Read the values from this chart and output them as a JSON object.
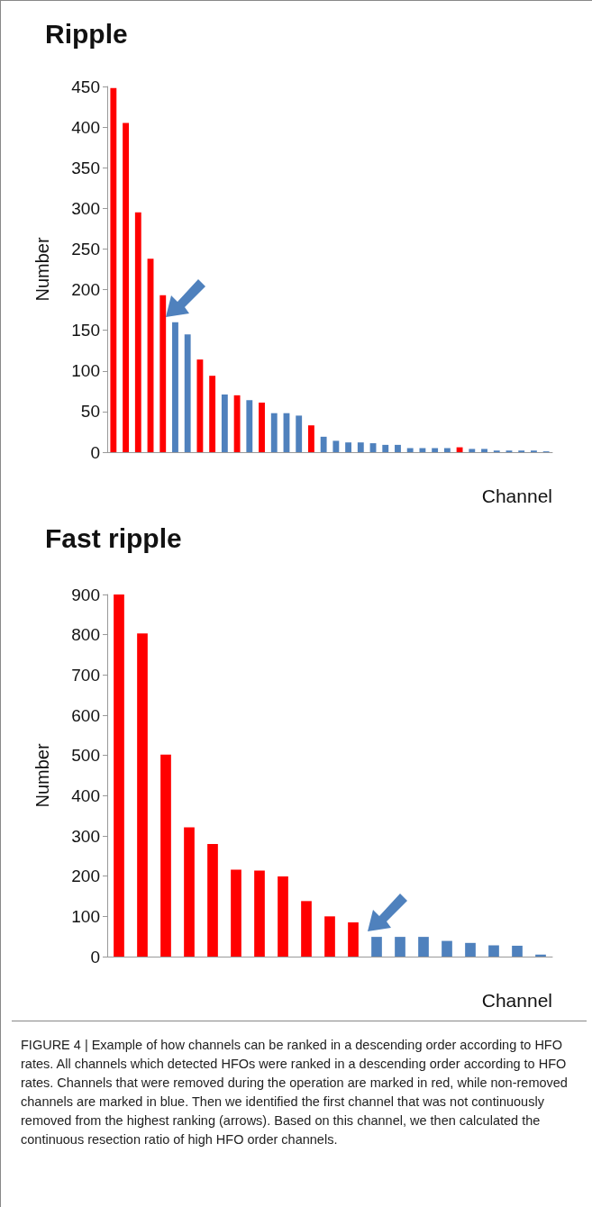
{
  "chart_data": [
    {
      "type": "bar",
      "title": "Ripple",
      "ylabel": "Number",
      "xlabel": "Channel",
      "categories": [
        null,
        null,
        null,
        null,
        null,
        null,
        null,
        null,
        null,
        null,
        null,
        null,
        null,
        null,
        null,
        null,
        null,
        null,
        null,
        null,
        null,
        null,
        null,
        null,
        null,
        null,
        null,
        null,
        null,
        null,
        null,
        null,
        null,
        null,
        null,
        null
      ],
      "values": [
        448,
        405,
        295,
        238,
        193,
        160,
        145,
        114,
        94,
        71,
        70,
        64,
        61,
        48,
        48,
        45,
        33,
        19,
        14,
        12,
        12,
        11,
        9,
        9,
        5,
        5,
        5,
        5,
        6,
        4,
        4,
        2,
        2,
        2,
        2,
        1
      ],
      "colors": [
        "#ff0000",
        "#ff0000",
        "#ff0000",
        "#ff0000",
        "#ff0000",
        "#4f81bd",
        "#4f81bd",
        "#ff0000",
        "#ff0000",
        "#4f81bd",
        "#ff0000",
        "#4f81bd",
        "#ff0000",
        "#4f81bd",
        "#4f81bd",
        "#4f81bd",
        "#ff0000",
        "#4f81bd",
        "#4f81bd",
        "#4f81bd",
        "#4f81bd",
        "#4f81bd",
        "#4f81bd",
        "#4f81bd",
        "#4f81bd",
        "#4f81bd",
        "#4f81bd",
        "#4f81bd",
        "#ff0000",
        "#4f81bd",
        "#4f81bd",
        "#4f81bd",
        "#4f81bd",
        "#4f81bd",
        "#4f81bd",
        "#4f81bd"
      ],
      "ylim": [
        0,
        450
      ],
      "yticks": [
        0,
        50,
        100,
        150,
        200,
        250,
        300,
        350,
        400,
        450
      ],
      "grid": false,
      "tick_labels": "y"
    },
    {
      "type": "bar",
      "title": "Fast ripple",
      "ylabel": "Number",
      "xlabel": "Channel",
      "categories": [
        null,
        null,
        null,
        null,
        null,
        null,
        null,
        null,
        null,
        null,
        null,
        null,
        null,
        null,
        null,
        null,
        null,
        null,
        null
      ],
      "values": [
        900,
        803,
        502,
        321,
        280,
        216,
        214,
        199,
        138,
        100,
        85,
        49,
        49,
        49,
        39,
        34,
        28,
        27,
        5
      ],
      "colors": [
        "#ff0000",
        "#ff0000",
        "#ff0000",
        "#ff0000",
        "#ff0000",
        "#ff0000",
        "#ff0000",
        "#ff0000",
        "#ff0000",
        "#ff0000",
        "#ff0000",
        "#4f81bd",
        "#4f81bd",
        "#4f81bd",
        "#4f81bd",
        "#4f81bd",
        "#4f81bd",
        "#4f81bd",
        "#4f81bd"
      ],
      "ylim": [
        0,
        900
      ],
      "yticks": [
        0,
        100,
        200,
        300,
        400,
        500,
        600,
        700,
        800,
        900
      ],
      "grid": false,
      "tick_labels": "y",
      "annotations": [
        "FIGURE 4 | Example of how channels can be ranked in a descending order according to HFO rates. All channels which detected HFOs were ranked in a descending order according to HFO rates. Channels that were removed during the operation are marked in red, while non-removed channels are marked in blue. Then we identified the first channel that was not continuously removed from the highest ranking (arrows). Based on this channel, we then calculated the continuous resection ratio of high HFO order channels."
      ]
    }
  ]
}
